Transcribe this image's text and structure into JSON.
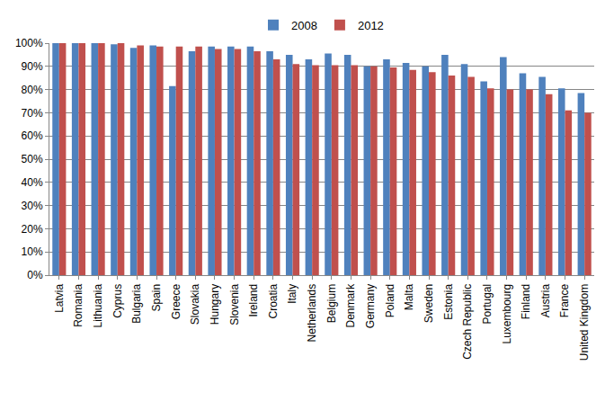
{
  "chart_data": {
    "type": "bar",
    "categories": [
      "Latvia",
      "Romania",
      "Lithuania",
      "Cyprus",
      "Bulgaria",
      "Spain",
      "Greece",
      "Slovakia",
      "Hungary",
      "Slovenia",
      "Ireland",
      "Croatia",
      "Italy",
      "Netherlands",
      "Belgium",
      "Denmark",
      "Germany",
      "Poland",
      "Malta",
      "Sweden",
      "Estonia",
      "Czech Republic",
      "Portugal",
      "Luxembourg",
      "Finland",
      "Austria",
      "France",
      "United Kingdom"
    ],
    "series": [
      {
        "name": "2008",
        "color": "#4f81bd",
        "values": [
          100,
          100,
          100,
          99.5,
          98,
          99,
          81.5,
          96.5,
          98.5,
          98.5,
          98.5,
          96.5,
          95,
          93,
          95.5,
          95,
          90,
          93,
          91.5,
          90,
          95,
          91,
          83.5,
          94,
          87,
          85.5,
          80.5,
          78.5
        ]
      },
      {
        "name": "2012",
        "color": "#c0504d",
        "values": [
          100,
          100,
          100,
          100,
          99,
          98.5,
          98.5,
          98.5,
          97.5,
          97.5,
          96.5,
          93,
          91,
          90.5,
          90.5,
          90.5,
          90,
          89.5,
          88.5,
          87.5,
          86,
          85.5,
          80.5,
          80,
          80,
          78,
          71,
          70
        ]
      }
    ],
    "ylim": [
      0,
      100
    ],
    "yticks": [
      {
        "value": 0,
        "label": "0%"
      },
      {
        "value": 10,
        "label": "10%"
      },
      {
        "value": 20,
        "label": "20%"
      },
      {
        "value": 30,
        "label": "30%"
      },
      {
        "value": 40,
        "label": "40%"
      },
      {
        "value": 50,
        "label": "50%"
      },
      {
        "value": 60,
        "label": "60%"
      },
      {
        "value": 70,
        "label": "70%"
      },
      {
        "value": 80,
        "label": "80%"
      },
      {
        "value": 90,
        "label": "90%"
      },
      {
        "value": 100,
        "label": "100%"
      }
    ],
    "grid": true,
    "legend": "top"
  }
}
